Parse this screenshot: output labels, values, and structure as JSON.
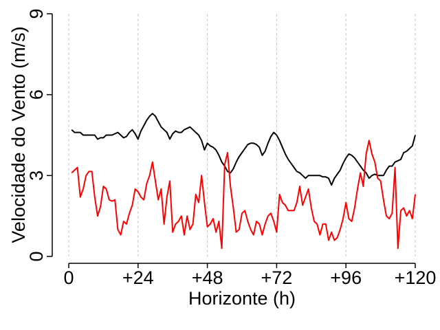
{
  "chart_data": {
    "type": "line",
    "xlabel": "Horizonte (h)",
    "ylabel": "Velocidade do Vento (m/s)",
    "xlim": [
      0,
      120
    ],
    "ylim": [
      0,
      9
    ],
    "x_ticks": [
      0,
      24,
      48,
      72,
      96,
      120
    ],
    "x_tick_labels": [
      "0",
      "+24",
      "+48",
      "+72",
      "+96",
      "+120"
    ],
    "y_ticks": [
      0,
      3,
      6,
      9
    ],
    "y_tick_labels": [
      "0",
      "3",
      "6",
      "9"
    ],
    "grid": "vertical dashed",
    "legend": "none",
    "series": [
      {
        "color": "#000000",
        "points": [
          [
            1,
            4.7
          ],
          [
            2,
            4.6
          ],
          [
            3,
            4.6
          ],
          [
            4,
            4.6
          ],
          [
            5,
            4.5
          ],
          [
            6,
            4.5
          ],
          [
            7,
            4.5
          ],
          [
            8,
            4.5
          ],
          [
            9,
            4.5
          ],
          [
            10,
            4.35
          ],
          [
            11,
            4.4
          ],
          [
            12,
            4.4
          ],
          [
            13,
            4.5
          ],
          [
            14,
            4.5
          ],
          [
            15,
            4.5
          ],
          [
            16,
            4.55
          ],
          [
            17,
            4.6
          ],
          [
            18,
            4.5
          ],
          [
            19,
            4.4
          ],
          [
            20,
            4.45
          ],
          [
            21,
            4.6
          ],
          [
            22,
            4.7
          ],
          [
            23,
            4.55
          ],
          [
            24,
            4.35
          ],
          [
            25,
            4.65
          ],
          [
            26,
            4.85
          ],
          [
            27,
            5.05
          ],
          [
            28,
            5.2
          ],
          [
            29,
            5.3
          ],
          [
            30,
            5.2
          ],
          [
            31,
            5.0
          ],
          [
            32,
            4.8
          ],
          [
            33,
            4.7
          ],
          [
            34,
            4.6
          ],
          [
            35,
            4.35
          ],
          [
            36,
            4.55
          ],
          [
            37,
            4.65
          ],
          [
            38,
            4.6
          ],
          [
            39,
            4.6
          ],
          [
            40,
            4.7
          ],
          [
            41,
            4.75
          ],
          [
            42,
            4.8
          ],
          [
            43,
            4.7
          ],
          [
            44,
            4.6
          ],
          [
            45,
            4.5
          ],
          [
            46,
            4.3
          ],
          [
            47,
            3.95
          ],
          [
            48,
            4.2
          ],
          [
            49,
            4.1
          ],
          [
            50,
            4.05
          ],
          [
            51,
            3.95
          ],
          [
            52,
            3.75
          ],
          [
            53,
            3.5
          ],
          [
            54,
            3.35
          ],
          [
            55,
            3.15
          ],
          [
            56,
            3.1
          ],
          [
            57,
            3.25
          ],
          [
            58,
            3.5
          ],
          [
            59,
            3.7
          ],
          [
            60,
            3.85
          ],
          [
            61,
            4.0
          ],
          [
            62,
            4.15
          ],
          [
            63,
            4.2
          ],
          [
            64,
            4.2
          ],
          [
            65,
            4.15
          ],
          [
            66,
            4.05
          ],
          [
            67,
            3.75
          ],
          [
            68,
            3.9
          ],
          [
            69,
            4.2
          ],
          [
            70,
            4.45
          ],
          [
            71,
            4.6
          ],
          [
            72,
            4.5
          ],
          [
            73,
            4.3
          ],
          [
            74,
            4.05
          ],
          [
            75,
            3.8
          ],
          [
            76,
            3.6
          ],
          [
            77,
            3.45
          ],
          [
            78,
            3.3
          ],
          [
            79,
            3.15
          ],
          [
            80,
            3.1
          ],
          [
            81,
            3.0
          ],
          [
            82,
            2.9
          ],
          [
            83,
            3.0
          ],
          [
            84,
            3.0
          ],
          [
            85,
            3.0
          ],
          [
            86,
            3.0
          ],
          [
            87,
            3.0
          ],
          [
            88,
            2.95
          ],
          [
            89,
            2.95
          ],
          [
            90,
            2.9
          ],
          [
            91,
            2.65
          ],
          [
            92,
            2.9
          ],
          [
            93,
            3.05
          ],
          [
            94,
            3.2
          ],
          [
            95,
            3.45
          ],
          [
            96,
            3.65
          ],
          [
            97,
            3.8
          ],
          [
            98,
            3.75
          ],
          [
            99,
            3.65
          ],
          [
            100,
            3.5
          ],
          [
            101,
            3.35
          ],
          [
            102,
            3.2
          ],
          [
            103,
            3.1
          ],
          [
            104,
            2.9
          ],
          [
            105,
            3.0
          ],
          [
            106,
            3.05
          ],
          [
            107,
            3.0
          ],
          [
            108,
            3.0
          ],
          [
            109,
            3.0
          ],
          [
            110,
            3.2
          ],
          [
            111,
            3.35
          ],
          [
            112,
            3.35
          ],
          [
            113,
            3.5
          ],
          [
            114,
            3.55
          ],
          [
            115,
            3.6
          ],
          [
            116,
            3.85
          ],
          [
            117,
            3.9
          ],
          [
            118,
            4.0
          ],
          [
            119,
            4.1
          ],
          [
            120,
            4.5
          ]
        ]
      },
      {
        "color": "#ff0000",
        "points": [
          [
            1,
            3.1
          ],
          [
            2,
            3.2
          ],
          [
            3,
            3.3
          ],
          [
            4,
            2.2
          ],
          [
            5,
            2.5
          ],
          [
            6,
            3.0
          ],
          [
            7,
            3.15
          ],
          [
            8,
            3.15
          ],
          [
            9,
            2.2
          ],
          [
            10,
            1.5
          ],
          [
            11,
            1.85
          ],
          [
            12,
            2.6
          ],
          [
            13,
            2.5
          ],
          [
            14,
            2.1
          ],
          [
            15,
            2.05
          ],
          [
            16,
            2.1
          ],
          [
            17,
            1.0
          ],
          [
            18,
            0.8
          ],
          [
            19,
            1.3
          ],
          [
            20,
            1.2
          ],
          [
            21,
            1.6
          ],
          [
            22,
            1.9
          ],
          [
            23,
            2.5
          ],
          [
            24,
            2.4
          ],
          [
            25,
            2.2
          ],
          [
            26,
            2.1
          ],
          [
            27,
            2.7
          ],
          [
            28,
            3.0
          ],
          [
            29,
            3.5
          ],
          [
            30,
            2.8
          ],
          [
            31,
            2.1
          ],
          [
            32,
            2.5
          ],
          [
            33,
            1.2
          ],
          [
            34,
            2.2
          ],
          [
            35,
            2.8
          ],
          [
            36,
            0.9
          ],
          [
            37,
            1.2
          ],
          [
            38,
            1.3
          ],
          [
            39,
            1.5
          ],
          [
            40,
            0.8
          ],
          [
            41,
            1.5
          ],
          [
            42,
            1.0
          ],
          [
            43,
            1.2
          ],
          [
            44,
            2.3
          ],
          [
            45,
            2.0
          ],
          [
            46,
            3.0
          ],
          [
            47,
            2.0
          ],
          [
            48,
            1.1
          ],
          [
            49,
            1.2
          ],
          [
            50,
            1.4
          ],
          [
            51,
            0.9
          ],
          [
            52,
            1.3
          ],
          [
            53,
            0.3
          ],
          [
            54,
            3.4
          ],
          [
            55,
            3.85
          ],
          [
            56,
            2.6
          ],
          [
            57,
            1.8
          ],
          [
            58,
            0.9
          ],
          [
            59,
            1.0
          ],
          [
            60,
            1.6
          ],
          [
            61,
            1.7
          ],
          [
            62,
            1.3
          ],
          [
            63,
            1.0
          ],
          [
            64,
            0.8
          ],
          [
            65,
            1.3
          ],
          [
            66,
            1.2
          ],
          [
            67,
            0.8
          ],
          [
            68,
            1.2
          ],
          [
            69,
            1.5
          ],
          [
            70,
            1.6
          ],
          [
            71,
            1.3
          ],
          [
            72,
            0.9
          ],
          [
            73,
            2.3
          ],
          [
            74,
            2.0
          ],
          [
            75,
            1.9
          ],
          [
            76,
            1.7
          ],
          [
            77,
            1.7
          ],
          [
            78,
            1.7
          ],
          [
            79,
            2.0
          ],
          [
            80,
            2.6
          ],
          [
            81,
            1.9
          ],
          [
            82,
            2.2
          ],
          [
            83,
            2.5
          ],
          [
            84,
            1.8
          ],
          [
            85,
            1.3
          ],
          [
            86,
            1.2
          ],
          [
            87,
            0.8
          ],
          [
            88,
            1.2
          ],
          [
            89,
            1.2
          ],
          [
            90,
            0.6
          ],
          [
            91,
            0.9
          ],
          [
            92,
            0.6
          ],
          [
            93,
            0.7
          ],
          [
            94,
            1.0
          ],
          [
            95,
            1.4
          ],
          [
            96,
            2.0
          ],
          [
            97,
            1.4
          ],
          [
            98,
            1.3
          ],
          [
            99,
            1.8
          ],
          [
            100,
            2.5
          ],
          [
            101,
            3.1
          ],
          [
            102,
            2.6
          ],
          [
            103,
            3.8
          ],
          [
            104,
            4.3
          ],
          [
            105,
            3.8
          ],
          [
            106,
            3.5
          ],
          [
            107,
            2.9
          ],
          [
            108,
            2.8
          ],
          [
            109,
            2.1
          ],
          [
            110,
            1.5
          ],
          [
            111,
            1.4
          ],
          [
            112,
            1.6
          ],
          [
            113,
            3.3
          ],
          [
            114,
            0.3
          ],
          [
            115,
            1.7
          ],
          [
            116,
            1.8
          ],
          [
            117,
            1.5
          ],
          [
            118,
            1.7
          ],
          [
            119,
            1.4
          ],
          [
            120,
            2.3
          ]
        ]
      }
    ]
  }
}
